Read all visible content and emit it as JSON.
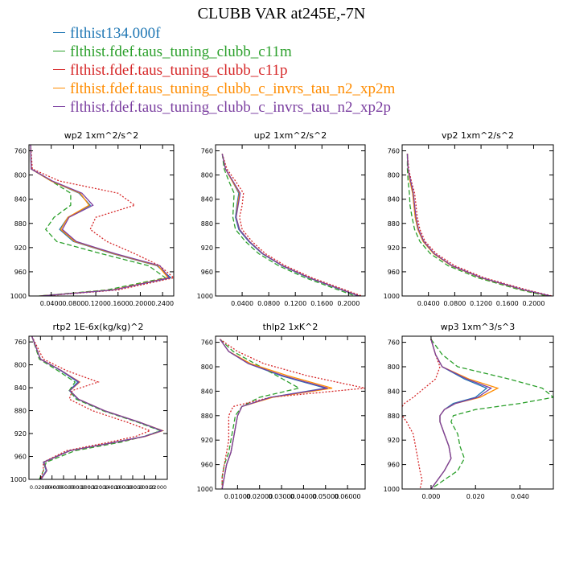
{
  "title": "CLUBB VAR at245E,-7N",
  "legend": [
    {
      "label": "flthist134.000f",
      "color": "#1f77b4",
      "dash": ""
    },
    {
      "label": "flthist.fdef.taus_tuning_clubb_c11m",
      "color": "#2ca02c",
      "dash": "6,3"
    },
    {
      "label": "flthist.fdef.taus_tuning_clubb_c11p",
      "color": "#d62728",
      "dash": "2,2"
    },
    {
      "label": "flthist.fdef.taus_tuning_clubb_c_invrs_tau_n2_xp2m",
      "color": "#ff8c00",
      "dash": ""
    },
    {
      "label": "flthist.fdef.taus_tuning_clubb_c_invrs_tau_n2_xp2p",
      "color": "#7b3fa0",
      "dash": ""
    }
  ],
  "chart_data": [
    {
      "type": "line",
      "title": "wp2  1xm^2/s^2",
      "xlim": [
        0,
        0.26
      ],
      "ylim": [
        1000,
        750
      ],
      "xticks": [
        0.04,
        0.08,
        0.12,
        0.16,
        0.2,
        0.24
      ],
      "xticklabels": [
        "0.0400",
        "0.0800",
        "0.1200",
        "0.1600",
        "0.2000",
        "0.2400"
      ],
      "yticks": [
        760,
        800,
        840,
        880,
        920,
        960,
        1000
      ],
      "y": [
        750,
        790,
        810,
        830,
        850,
        870,
        890,
        910,
        930,
        950,
        970,
        990,
        1000
      ],
      "series": [
        {
          "values": [
            0.003,
            0.004,
            0.04,
            0.09,
            0.11,
            0.07,
            0.055,
            0.08,
            0.15,
            0.23,
            0.255,
            0.15,
            0.02
          ]
        },
        {
          "values": [
            0.003,
            0.004,
            0.04,
            0.075,
            0.075,
            0.045,
            0.03,
            0.05,
            0.13,
            0.215,
            0.245,
            0.14,
            0.018
          ]
        },
        {
          "values": [
            0.003,
            0.006,
            0.055,
            0.16,
            0.19,
            0.12,
            0.11,
            0.14,
            0.19,
            0.235,
            0.26,
            0.16,
            0.025
          ]
        },
        {
          "values": [
            0.003,
            0.004,
            0.04,
            0.092,
            0.108,
            0.07,
            0.057,
            0.082,
            0.152,
            0.232,
            0.25,
            0.15,
            0.02
          ]
        },
        {
          "values": [
            0.003,
            0.004,
            0.042,
            0.095,
            0.115,
            0.072,
            0.06,
            0.085,
            0.155,
            0.235,
            0.252,
            0.152,
            0.021
          ]
        }
      ]
    },
    {
      "type": "line",
      "title": "up2  1xm^2/s^2",
      "xlim": [
        0,
        0.225
      ],
      "ylim": [
        1000,
        750
      ],
      "xticks": [
        0.04,
        0.08,
        0.12,
        0.16,
        0.2
      ],
      "xticklabels": [
        "0.0400",
        "0.0800",
        "0.1200",
        "0.1600",
        "0.2000"
      ],
      "yticks": [
        760,
        800,
        840,
        880,
        920,
        960,
        1000
      ],
      "y": [
        765,
        790,
        810,
        830,
        850,
        870,
        890,
        910,
        930,
        950,
        970,
        990,
        1000
      ],
      "series": [
        {
          "values": [
            0.01,
            0.015,
            0.025,
            0.035,
            0.032,
            0.03,
            0.035,
            0.05,
            0.07,
            0.1,
            0.14,
            0.19,
            0.215
          ]
        },
        {
          "values": [
            0.01,
            0.013,
            0.02,
            0.028,
            0.027,
            0.026,
            0.03,
            0.045,
            0.065,
            0.095,
            0.135,
            0.185,
            0.21
          ]
        },
        {
          "values": [
            0.01,
            0.017,
            0.03,
            0.042,
            0.04,
            0.036,
            0.04,
            0.055,
            0.075,
            0.105,
            0.145,
            0.195,
            0.22
          ]
        },
        {
          "values": [
            0.01,
            0.015,
            0.025,
            0.036,
            0.033,
            0.031,
            0.036,
            0.051,
            0.071,
            0.101,
            0.141,
            0.191,
            0.216
          ]
        },
        {
          "values": [
            0.01,
            0.015,
            0.026,
            0.037,
            0.034,
            0.031,
            0.036,
            0.051,
            0.071,
            0.101,
            0.141,
            0.191,
            0.216
          ]
        }
      ]
    },
    {
      "type": "line",
      "title": "vp2  1xm^2/s^2",
      "xlim": [
        0,
        0.23
      ],
      "ylim": [
        1000,
        750
      ],
      "xticks": [
        0.04,
        0.08,
        0.12,
        0.16,
        0.2
      ],
      "xticklabels": [
        "0.0400",
        "0.0800",
        "0.1200",
        "0.1600",
        "0.2000"
      ],
      "yticks": [
        760,
        800,
        840,
        880,
        920,
        960,
        1000
      ],
      "y": [
        765,
        790,
        810,
        830,
        850,
        870,
        890,
        910,
        930,
        950,
        970,
        990,
        1000
      ],
      "series": [
        {
          "values": [
            0.008,
            0.009,
            0.012,
            0.016,
            0.018,
            0.02,
            0.024,
            0.032,
            0.048,
            0.075,
            0.12,
            0.185,
            0.225
          ]
        },
        {
          "values": [
            0.008,
            0.008,
            0.009,
            0.011,
            0.012,
            0.015,
            0.019,
            0.027,
            0.043,
            0.07,
            0.115,
            0.18,
            0.22
          ]
        },
        {
          "values": [
            0.008,
            0.01,
            0.014,
            0.019,
            0.021,
            0.023,
            0.027,
            0.035,
            0.052,
            0.08,
            0.125,
            0.19,
            0.228
          ]
        },
        {
          "values": [
            0.008,
            0.009,
            0.012,
            0.016,
            0.018,
            0.02,
            0.024,
            0.032,
            0.048,
            0.075,
            0.12,
            0.185,
            0.225
          ]
        },
        {
          "values": [
            0.008,
            0.009,
            0.013,
            0.017,
            0.019,
            0.021,
            0.025,
            0.033,
            0.049,
            0.076,
            0.121,
            0.186,
            0.226
          ]
        }
      ]
    },
    {
      "type": "line",
      "title": "rtp2  1E-6x(kg/kg)^2",
      "xlim": [
        0,
        0.24
      ],
      "ylim": [
        1000,
        750
      ],
      "xticks": [
        0.02,
        0.04,
        0.06,
        0.08,
        0.1,
        0.12,
        0.14,
        0.16,
        0.18,
        0.2,
        0.22
      ],
      "xticklabels": [
        "0.02000",
        "0.04000",
        "0.06000",
        "0.08000",
        "0.10000",
        "0.12000",
        "0.14000",
        "0.16000",
        "0.18000",
        "0.20000",
        "0.22000"
      ],
      "yticks": [
        760,
        800,
        840,
        880,
        920,
        960,
        1000
      ],
      "y": [
        750,
        790,
        810,
        830,
        845,
        860,
        880,
        900,
        915,
        925,
        935,
        950,
        970,
        985,
        1000
      ],
      "series": [
        {
          "values": [
            0.005,
            0.02,
            0.055,
            0.085,
            0.07,
            0.085,
            0.13,
            0.19,
            0.23,
            0.2,
            0.15,
            0.07,
            0.025,
            0.03,
            0.02
          ]
        },
        {
          "values": [
            0.005,
            0.018,
            0.05,
            0.08,
            0.07,
            0.082,
            0.128,
            0.188,
            0.228,
            0.2,
            0.16,
            0.08,
            0.03,
            0.025,
            0.018
          ]
        },
        {
          "values": [
            0.005,
            0.025,
            0.065,
            0.12,
            0.075,
            0.07,
            0.11,
            0.17,
            0.21,
            0.185,
            0.14,
            0.065,
            0.025,
            0.025,
            0.02
          ]
        },
        {
          "values": [
            0.005,
            0.02,
            0.056,
            0.088,
            0.071,
            0.086,
            0.131,
            0.191,
            0.232,
            0.202,
            0.151,
            0.071,
            0.026,
            0.031,
            0.021
          ]
        },
        {
          "values": [
            0.005,
            0.02,
            0.056,
            0.087,
            0.071,
            0.086,
            0.131,
            0.191,
            0.231,
            0.201,
            0.151,
            0.071,
            0.026,
            0.031,
            0.021
          ]
        }
      ]
    },
    {
      "type": "line",
      "title": "thlp2  1xK^2",
      "xlim": [
        0,
        0.068
      ],
      "ylim": [
        1000,
        750
      ],
      "xticks": [
        0.01,
        0.02,
        0.03,
        0.04,
        0.05,
        0.06
      ],
      "xticklabels": [
        "0.01000",
        "0.02000",
        "0.03000",
        "0.04000",
        "0.05000",
        "0.06000"
      ],
      "yticks": [
        760,
        800,
        840,
        880,
        920,
        960,
        1000
      ],
      "y": [
        755,
        775,
        795,
        815,
        835,
        850,
        865,
        880,
        900,
        920,
        940,
        960,
        980,
        1000
      ],
      "series": [
        {
          "values": [
            0.002,
            0.006,
            0.015,
            0.03,
            0.05,
            0.025,
            0.012,
            0.01,
            0.009,
            0.008,
            0.007,
            0.005,
            0.004,
            0.003
          ]
        },
        {
          "values": [
            0.002,
            0.008,
            0.018,
            0.028,
            0.038,
            0.02,
            0.012,
            0.009,
            0.008,
            0.007,
            0.006,
            0.004,
            0.003,
            0.003
          ]
        },
        {
          "values": [
            0.002,
            0.01,
            0.022,
            0.042,
            0.068,
            0.025,
            0.008,
            0.006,
            0.006,
            0.006,
            0.005,
            0.004,
            0.003,
            0.003
          ]
        },
        {
          "values": [
            0.002,
            0.006,
            0.016,
            0.033,
            0.053,
            0.026,
            0.012,
            0.01,
            0.009,
            0.008,
            0.007,
            0.005,
            0.004,
            0.003
          ]
        },
        {
          "values": [
            0.002,
            0.006,
            0.015,
            0.031,
            0.051,
            0.025,
            0.012,
            0.01,
            0.009,
            0.008,
            0.007,
            0.005,
            0.004,
            0.003
          ]
        }
      ]
    },
    {
      "type": "line",
      "title": "wp3  1xm^3/s^3",
      "xlim": [
        -0.013,
        0.055
      ],
      "ylim": [
        1000,
        750
      ],
      "xticks": [
        0,
        0.02,
        0.04
      ],
      "xticklabels": [
        "0.000",
        "0.020",
        "0.040"
      ],
      "yticks": [
        760,
        800,
        840,
        880,
        920,
        960,
        1000
      ],
      "y": [
        755,
        780,
        800,
        820,
        835,
        850,
        860,
        870,
        880,
        890,
        910,
        930,
        950,
        970,
        985,
        1000
      ],
      "series": [
        {
          "values": [
            0,
            0.002,
            0.005,
            0.015,
            0.025,
            0.02,
            0.01,
            0.006,
            0.004,
            0.004,
            0.006,
            0.008,
            0.009,
            0.006,
            0.003,
            0
          ]
        },
        {
          "values": [
            0,
            0.005,
            0.012,
            0.035,
            0.05,
            0.055,
            0.04,
            0.02,
            0.01,
            0.009,
            0.012,
            0.013,
            0.015,
            0.012,
            0.006,
            0
          ]
        },
        {
          "values": [
            0,
            0.002,
            0.004,
            0.002,
            -0.003,
            -0.008,
            -0.012,
            -0.014,
            -0.013,
            -0.011,
            -0.008,
            -0.007,
            -0.006,
            -0.005,
            -0.004,
            -0.005
          ]
        },
        {
          "values": [
            0,
            0.002,
            0.005,
            0.017,
            0.03,
            0.022,
            0.011,
            0.006,
            0.004,
            0.004,
            0.006,
            0.008,
            0.009,
            0.006,
            0.003,
            0
          ]
        },
        {
          "values": [
            0,
            0.002,
            0.005,
            0.016,
            0.027,
            0.021,
            0.011,
            0.006,
            0.004,
            0.004,
            0.006,
            0.008,
            0.009,
            0.006,
            0.003,
            0
          ]
        }
      ]
    }
  ]
}
